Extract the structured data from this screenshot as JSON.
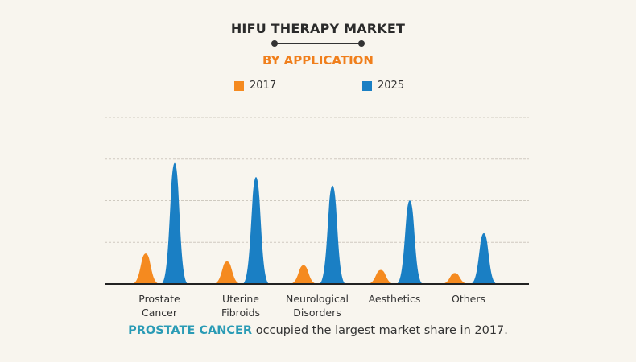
{
  "chart_data": {
    "type": "area",
    "title": "HIFU THERAPY MARKET",
    "subtitle": "BY APPLICATION",
    "categories": [
      [
        "Prostate",
        "Cancer"
      ],
      [
        "Uterine",
        "Fibroids"
      ],
      [
        "Neurological",
        "Disorders"
      ],
      [
        "Aesthetics"
      ],
      [
        "Others"
      ]
    ],
    "series": [
      {
        "name": "2017",
        "color": "#f58a1f",
        "values": [
          39,
          29,
          24,
          18,
          14
        ]
      },
      {
        "name": "2025",
        "color": "#1a7fc4",
        "values": [
          155,
          137,
          126,
          107,
          65
        ]
      }
    ],
    "ylim": [
      0,
      200
    ],
    "grid": true,
    "legend": "top"
  },
  "caption": {
    "highlight": "PROSTATE CANCER",
    "rest": " occupied the largest market share in 2017."
  }
}
